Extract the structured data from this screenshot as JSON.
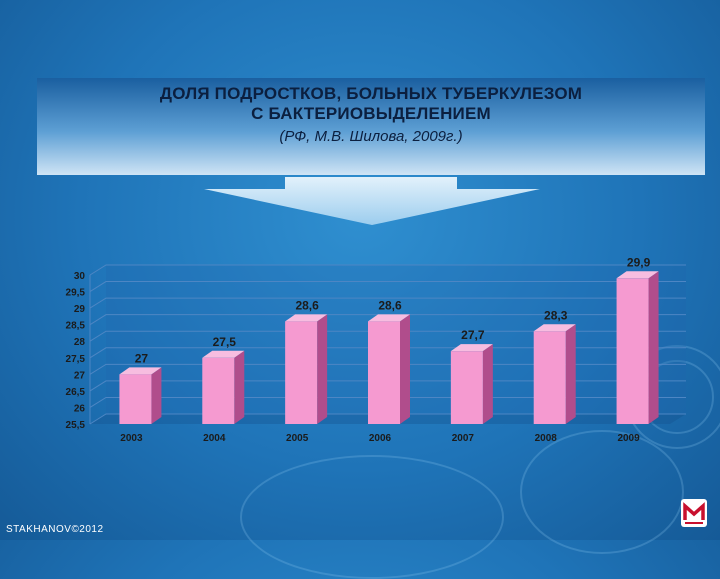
{
  "title": {
    "line1": "ДОЛЯ ПОДРОСТКОВ, БОЛЬНЫХ ТУБЕРКУЛЕЗОМ",
    "line2": "С БАКТЕРИОВЫДЕЛЕНИЕМ",
    "source": "(РФ, М.В. Шилова, 2009г.)"
  },
  "footer": {
    "credit": "STAKHANOV©2012"
  },
  "colors": {
    "bar_front": "#f59ad0",
    "bar_side": "#b04d8c",
    "bar_top": "#f7bde0",
    "grid": "#4d86c4",
    "label": "#1b1b1b"
  },
  "chart_data": {
    "type": "bar",
    "categories": [
      "2003",
      "2004",
      "2005",
      "2006",
      "2007",
      "2008",
      "2009"
    ],
    "values": [
      27,
      27.5,
      28.6,
      28.6,
      27.7,
      28.3,
      29.9
    ],
    "value_labels": [
      "27",
      "27,5",
      "28,6",
      "28,6",
      "27,7",
      "28,3",
      "29,9"
    ],
    "y_ticks": [
      "25,5",
      "26",
      "26,5",
      "27",
      "27,5",
      "28",
      "28,5",
      "29",
      "29,5",
      "30"
    ],
    "ylim": [
      25.5,
      30
    ],
    "grid": true,
    "legend": "none"
  }
}
